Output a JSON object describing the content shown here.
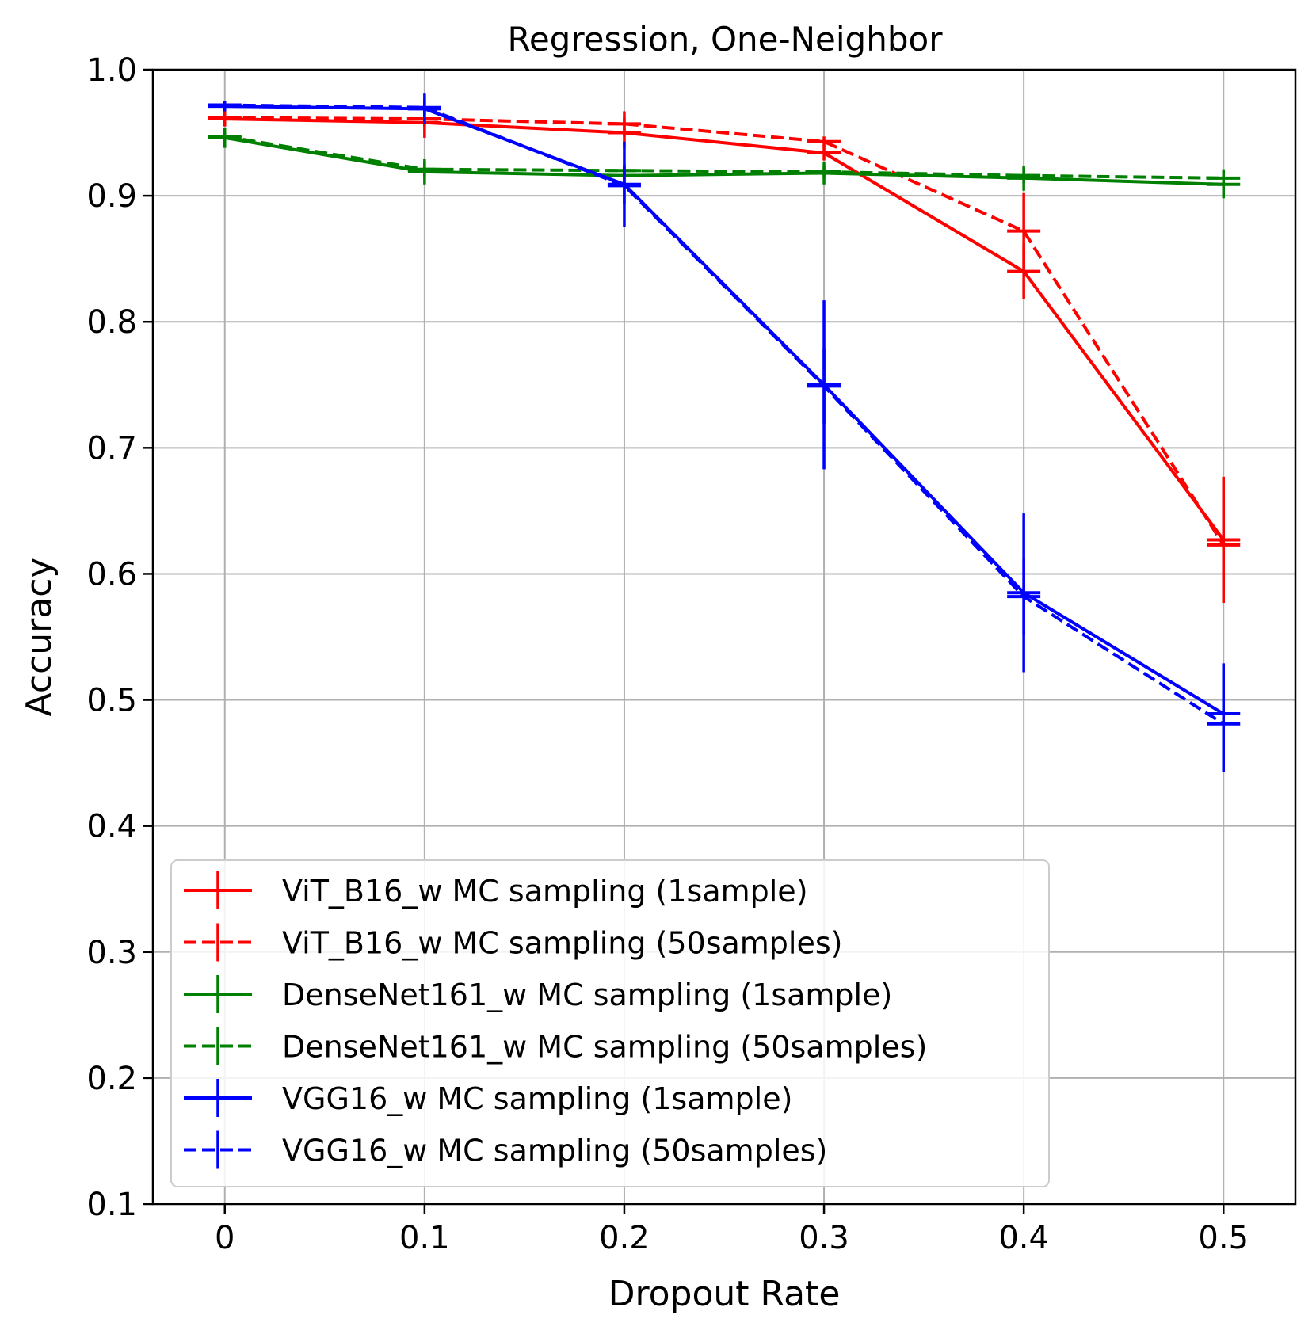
{
  "chart_data": {
    "type": "line",
    "title": "Regression, One-Neighbor",
    "xlabel": "Dropout Rate",
    "ylabel": "Accuracy",
    "x": [
      0,
      0.1,
      0.2,
      0.3,
      0.4,
      0.5
    ],
    "x_tick_labels": [
      "0",
      "0.1",
      "0.2",
      "0.3",
      "0.4",
      "0.5"
    ],
    "xlim": [
      -0.036,
      0.536
    ],
    "ylim": [
      0.1,
      1.0
    ],
    "y_ticks": [
      0.1,
      0.2,
      0.3,
      0.4,
      0.5,
      0.6,
      0.7,
      0.8,
      0.9,
      1.0
    ],
    "y_tick_labels": [
      "0.1",
      "0.2",
      "0.3",
      "0.4",
      "0.5",
      "0.6",
      "0.7",
      "0.8",
      "0.9",
      "1.0"
    ],
    "grid": true,
    "legend_position": "lower-left",
    "error_bars": true,
    "series": [
      {
        "name": "ViT_B16_w MC sampling (1sample)",
        "color": "#ff0000",
        "linestyle": "solid",
        "values": [
          0.961,
          0.958,
          0.95,
          0.934,
          0.84,
          0.627
        ],
        "errors": [
          0.006,
          0.012,
          0.012,
          0.006,
          0.022,
          0.05
        ]
      },
      {
        "name": "ViT_B16_w MC sampling (50samples)",
        "color": "#ff0000",
        "linestyle": "dashed",
        "values": [
          0.962,
          0.961,
          0.957,
          0.943,
          0.872,
          0.623
        ],
        "errors": [
          0.004,
          0.006,
          0.01,
          0.004,
          0.03,
          0.04
        ]
      },
      {
        "name": "DenseNet161_w MC sampling (1sample)",
        "color": "#008000",
        "linestyle": "solid",
        "values": [
          0.946,
          0.919,
          0.916,
          0.918,
          0.914,
          0.909
        ],
        "errors": [
          0.008,
          0.01,
          0.007,
          0.009,
          0.01,
          0.011
        ]
      },
      {
        "name": "DenseNet161_w MC sampling (50samples)",
        "color": "#008000",
        "linestyle": "dashed",
        "values": [
          0.947,
          0.921,
          0.92,
          0.919,
          0.916,
          0.914
        ],
        "errors": [
          0.005,
          0.006,
          0.005,
          0.005,
          0.006,
          0.007
        ]
      },
      {
        "name": "VGG16_w MC sampling (1sample)",
        "color": "#0000ff",
        "linestyle": "solid",
        "values": [
          0.971,
          0.969,
          0.909,
          0.75,
          0.585,
          0.489
        ],
        "errors": [
          0.004,
          0.012,
          0.034,
          0.067,
          0.063,
          0.04
        ]
      },
      {
        "name": "VGG16_w MC sampling (50samples)",
        "color": "#0000ff",
        "linestyle": "dashed",
        "values": [
          0.972,
          0.97,
          0.908,
          0.749,
          0.582,
          0.481
        ],
        "errors": [
          0.003,
          0.006,
          0.015,
          0.03,
          0.03,
          0.038
        ]
      }
    ]
  }
}
